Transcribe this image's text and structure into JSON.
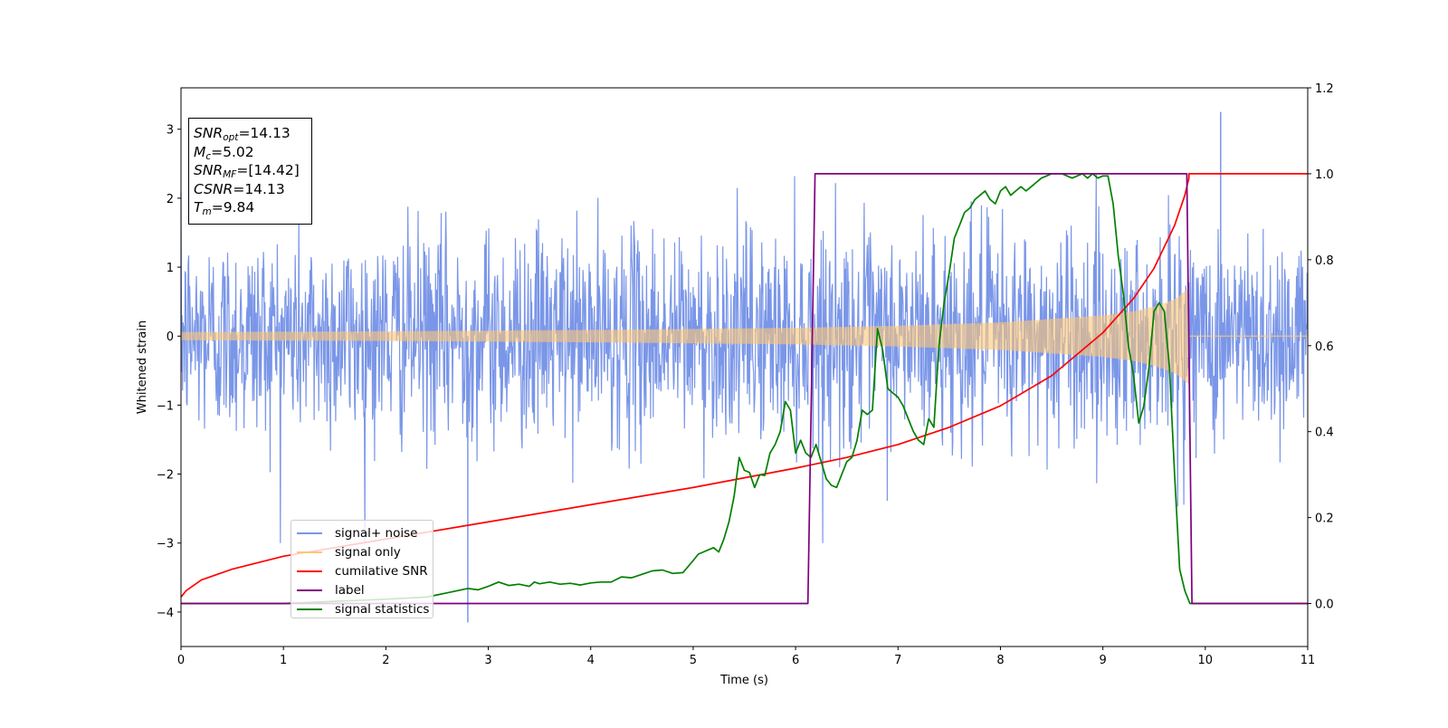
{
  "chart_data": {
    "type": "line",
    "xlabel": "Time (s)",
    "ylabel": "Whitened strain",
    "xlim": [
      0,
      11
    ],
    "ylim": [
      -4.5,
      3.6
    ],
    "y2lim": [
      -0.1,
      1.2
    ],
    "xticks": [
      0,
      1,
      2,
      3,
      4,
      5,
      6,
      7,
      8,
      9,
      10,
      11
    ],
    "xtick_labels": [
      "0",
      "1",
      "2",
      "3",
      "4",
      "5",
      "6",
      "7",
      "8",
      "9",
      "10",
      "11"
    ],
    "yticks": [
      -4,
      -3,
      -2,
      -1,
      0,
      1,
      2,
      3
    ],
    "ytick_labels": [
      "−4",
      "−3",
      "−2",
      "−1",
      "0",
      "1",
      "2",
      "3"
    ],
    "y2ticks": [
      0.0,
      0.2,
      0.4,
      0.6,
      0.8,
      1.0,
      1.2
    ],
    "y2tick_labels": [
      "0.0",
      "0.2",
      "0.4",
      "0.6",
      "0.8",
      "1.0",
      "1.2"
    ],
    "grid": false,
    "legend_position": "lower-left",
    "annotation": {
      "lines": [
        {
          "base": "SNR",
          "sub": "opt",
          "text": "=14.13"
        },
        {
          "base": "M",
          "sub": "c",
          "text": "=5.02"
        },
        {
          "base": "SNR",
          "sub": "MF",
          "text": "=[14.42]"
        },
        {
          "base": "CSNR",
          "sub": "",
          "text": "=14.13"
        },
        {
          "base": "T",
          "sub": "m",
          "text": "=9.84"
        }
      ]
    },
    "series": [
      {
        "name": "signal+ noise",
        "axis": "left",
        "color": "#7a96e8",
        "kind": "noise",
        "noise_std": 0.75,
        "noise_max": 3.25,
        "noise_min": -4.15,
        "spike_max_time": 10.15,
        "spike_min_time": 2.8
      },
      {
        "name": "signal only",
        "axis": "left",
        "color": "#fdc776",
        "kind": "chirp",
        "envelope_x": [
          0,
          2,
          4,
          6,
          7,
          8,
          8.5,
          9,
          9.3,
          9.5,
          9.7,
          9.84
        ],
        "envelope_y": [
          0.06,
          0.07,
          0.09,
          0.12,
          0.15,
          0.2,
          0.25,
          0.3,
          0.36,
          0.43,
          0.53,
          0.7
        ],
        "end_time": 9.84
      },
      {
        "name": "cumilative SNR",
        "axis": "right",
        "color": "#ff0000",
        "x": [
          0,
          0.05,
          0.2,
          0.5,
          1,
          1.5,
          2,
          3,
          4,
          5,
          6,
          6.5,
          7,
          7.5,
          8,
          8.5,
          9,
          9.3,
          9.5,
          9.7,
          9.8,
          9.84,
          9.84,
          11
        ],
        "y": [
          0.015,
          0.03,
          0.055,
          0.08,
          0.11,
          0.13,
          0.15,
          0.19,
          0.23,
          0.27,
          0.315,
          0.34,
          0.37,
          0.41,
          0.46,
          0.53,
          0.63,
          0.71,
          0.78,
          0.88,
          0.95,
          0.99,
          1.0,
          1.0
        ]
      },
      {
        "name": "label",
        "axis": "right",
        "color": "#800080",
        "x": [
          0,
          6.12,
          6.19,
          9.82,
          9.87,
          11
        ],
        "y": [
          0,
          0,
          1,
          1,
          0,
          0
        ]
      },
      {
        "name": "signal statistics",
        "axis": "right",
        "color": "#008000",
        "x": [
          0,
          1.0,
          2.0,
          2.4,
          2.5,
          2.6,
          2.7,
          2.8,
          2.9,
          3.0,
          3.05,
          3.1,
          3.2,
          3.3,
          3.4,
          3.45,
          3.5,
          3.6,
          3.7,
          3.8,
          3.9,
          4.0,
          4.1,
          4.2,
          4.3,
          4.4,
          4.5,
          4.6,
          4.7,
          4.8,
          4.9,
          5.0,
          5.05,
          5.1,
          5.15,
          5.2,
          5.25,
          5.3,
          5.35,
          5.4,
          5.45,
          5.5,
          5.55,
          5.6,
          5.65,
          5.7,
          5.75,
          5.8,
          5.85,
          5.9,
          5.95,
          6.0,
          6.05,
          6.1,
          6.15,
          6.2,
          6.25,
          6.3,
          6.35,
          6.4,
          6.45,
          6.5,
          6.55,
          6.6,
          6.65,
          6.7,
          6.75,
          6.8,
          6.85,
          6.9,
          6.95,
          7.0,
          7.05,
          7.1,
          7.15,
          7.2,
          7.25,
          7.3,
          7.35,
          7.4,
          7.45,
          7.5,
          7.55,
          7.6,
          7.65,
          7.7,
          7.75,
          7.8,
          7.85,
          7.9,
          7.95,
          8.0,
          8.05,
          8.1,
          8.15,
          8.2,
          8.25,
          8.3,
          8.35,
          8.4,
          8.45,
          8.5,
          8.55,
          8.6,
          8.7,
          8.8,
          8.85,
          8.9,
          8.95,
          9.0,
          9.05,
          9.1,
          9.15,
          9.2,
          9.25,
          9.3,
          9.35,
          9.4,
          9.45,
          9.5,
          9.55,
          9.6,
          9.65,
          9.7,
          9.75,
          9.8,
          9.85,
          9.9,
          10.0,
          10.5,
          11
        ],
        "y": [
          0.0,
          0.0,
          0.01,
          0.015,
          0.02,
          0.025,
          0.03,
          0.035,
          0.032,
          0.04,
          0.045,
          0.05,
          0.042,
          0.045,
          0.04,
          0.05,
          0.046,
          0.05,
          0.045,
          0.047,
          0.043,
          0.048,
          0.05,
          0.05,
          0.062,
          0.06,
          0.068,
          0.076,
          0.078,
          0.07,
          0.072,
          0.1,
          0.115,
          0.12,
          0.125,
          0.13,
          0.12,
          0.15,
          0.19,
          0.25,
          0.34,
          0.31,
          0.305,
          0.27,
          0.3,
          0.298,
          0.35,
          0.37,
          0.4,
          0.47,
          0.45,
          0.35,
          0.38,
          0.35,
          0.34,
          0.37,
          0.33,
          0.29,
          0.275,
          0.27,
          0.3,
          0.33,
          0.34,
          0.38,
          0.45,
          0.44,
          0.45,
          0.64,
          0.59,
          0.5,
          0.49,
          0.48,
          0.46,
          0.43,
          0.4,
          0.38,
          0.37,
          0.43,
          0.41,
          0.6,
          0.7,
          0.77,
          0.85,
          0.88,
          0.91,
          0.92,
          0.94,
          0.95,
          0.96,
          0.94,
          0.93,
          0.96,
          0.97,
          0.95,
          0.96,
          0.97,
          0.96,
          0.97,
          0.98,
          0.99,
          0.995,
          1.0,
          1.0,
          1.0,
          0.99,
          1.0,
          0.99,
          1.0,
          0.99,
          0.995,
          0.995,
          0.93,
          0.81,
          0.72,
          0.6,
          0.53,
          0.42,
          0.46,
          0.55,
          0.68,
          0.7,
          0.68,
          0.55,
          0.3,
          0.08,
          0.03,
          0.0,
          0.0,
          0.0,
          0.0,
          0.0
        ]
      }
    ]
  }
}
